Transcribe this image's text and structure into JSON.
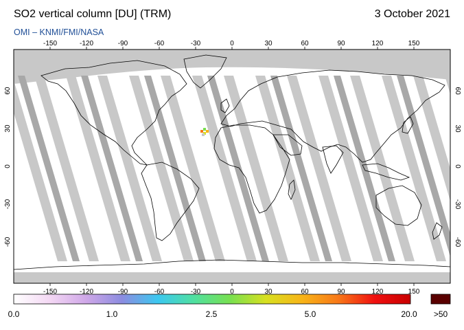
{
  "header": {
    "title": "SO2 vertical column [DU] (TRM)",
    "date": "3 October 2021",
    "subtitle": "OMI  –  KNMI/FMI/NASA"
  },
  "map": {
    "lon_ticks": [
      "-150",
      "-120",
      "-90",
      "-60",
      "-30",
      "0",
      "30",
      "60",
      "90",
      "120",
      "150"
    ],
    "lat_ticks": [
      "60",
      "30",
      "0",
      "-30",
      "-60"
    ],
    "ocean_color": "#ffffff",
    "land_outline_color": "#000000",
    "no_data_color": "#c8c8c8",
    "orbit_gap_color": "#a8a8a8"
  },
  "colorbar": {
    "labels": [
      "0.0",
      "1.0",
      "2.5",
      "5.0",
      "20.0"
    ],
    "overflow_label": ">50",
    "overflow_color": "#5a0000",
    "stops": [
      "#ffffff",
      "#f4d8f4",
      "#d0a8e8",
      "#8c8ce0",
      "#3cc8f0",
      "#50e0a0",
      "#78e050",
      "#d8e020",
      "#f8b418",
      "#f87818",
      "#f01010",
      "#c80000"
    ]
  }
}
